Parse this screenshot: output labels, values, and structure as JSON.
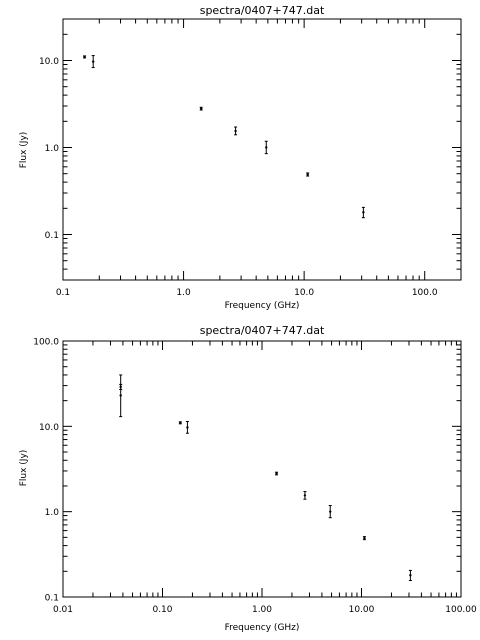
{
  "chart_data": [
    {
      "type": "scatter",
      "title": "spectra/0407+747.dat",
      "xlabel": "Frequency (GHz)",
      "ylabel": "Flux (Jy)",
      "xscale": "log",
      "yscale": "log",
      "xlim": [
        0.1,
        200
      ],
      "ylim": [
        0.03,
        30
      ],
      "grid": false,
      "xticks": [
        {
          "value": 0.1,
          "label": "0.1"
        },
        {
          "value": 1,
          "label": "1.0"
        },
        {
          "value": 10,
          "label": "10.0"
        },
        {
          "value": 100,
          "label": "100.0"
        }
      ],
      "yticks": [
        {
          "value": 0.1,
          "label": "0.1"
        },
        {
          "value": 1,
          "label": "1.0"
        },
        {
          "value": 10,
          "label": "10.0"
        }
      ],
      "series": [
        {
          "points": [
            {
              "x": 0.151,
              "y": 11.0,
              "ylow": 10.7,
              "yhigh": 11.3
            },
            {
              "x": 0.178,
              "y": 9.7,
              "ylow": 8.3,
              "yhigh": 11.4
            },
            {
              "x": 1.4,
              "y": 2.8,
              "ylow": 2.7,
              "yhigh": 2.9
            },
            {
              "x": 2.7,
              "y": 1.55,
              "ylow": 1.4,
              "yhigh": 1.72
            },
            {
              "x": 4.85,
              "y": 1.0,
              "ylow": 0.85,
              "yhigh": 1.18
            },
            {
              "x": 10.7,
              "y": 0.49,
              "ylow": 0.47,
              "yhigh": 0.51
            },
            {
              "x": 31.0,
              "y": 0.18,
              "ylow": 0.156,
              "yhigh": 0.205
            }
          ]
        }
      ]
    },
    {
      "type": "scatter",
      "title": "spectra/0407+747.dat",
      "xlabel": "Frequency (GHz)",
      "ylabel": "Flux (Jy)",
      "xscale": "log",
      "yscale": "log",
      "xlim": [
        0.01,
        100
      ],
      "ylim": [
        0.1,
        100
      ],
      "grid": false,
      "xticks": [
        {
          "value": 0.01,
          "label": "0.01"
        },
        {
          "value": 0.1,
          "label": "0.10"
        },
        {
          "value": 1,
          "label": "1.00"
        },
        {
          "value": 10,
          "label": "10.00"
        },
        {
          "value": 100,
          "label": "100.00"
        }
      ],
      "yticks": [
        {
          "value": 0.1,
          "label": "0.1"
        },
        {
          "value": 1,
          "label": "1.0"
        },
        {
          "value": 10,
          "label": "10.0"
        },
        {
          "value": 100,
          "label": "100.0"
        }
      ],
      "series": [
        {
          "points": [
            {
              "x": 0.038,
              "y": 23.0,
              "ylow": 13.0,
              "yhigh": 40.0
            },
            {
              "x": 0.038,
              "y": 29.0,
              "ylow": 27.0,
              "yhigh": 31.0
            },
            {
              "x": 0.151,
              "y": 11.0,
              "ylow": 10.7,
              "yhigh": 11.3
            },
            {
              "x": 0.178,
              "y": 9.7,
              "ylow": 8.3,
              "yhigh": 11.4
            },
            {
              "x": 1.4,
              "y": 2.8,
              "ylow": 2.7,
              "yhigh": 2.9
            },
            {
              "x": 2.7,
              "y": 1.55,
              "ylow": 1.4,
              "yhigh": 1.72
            },
            {
              "x": 4.85,
              "y": 1.0,
              "ylow": 0.85,
              "yhigh": 1.18
            },
            {
              "x": 10.7,
              "y": 0.49,
              "ylow": 0.47,
              "yhigh": 0.51
            },
            {
              "x": 31.0,
              "y": 0.18,
              "ylow": 0.156,
              "yhigh": 0.205
            }
          ]
        }
      ]
    }
  ]
}
